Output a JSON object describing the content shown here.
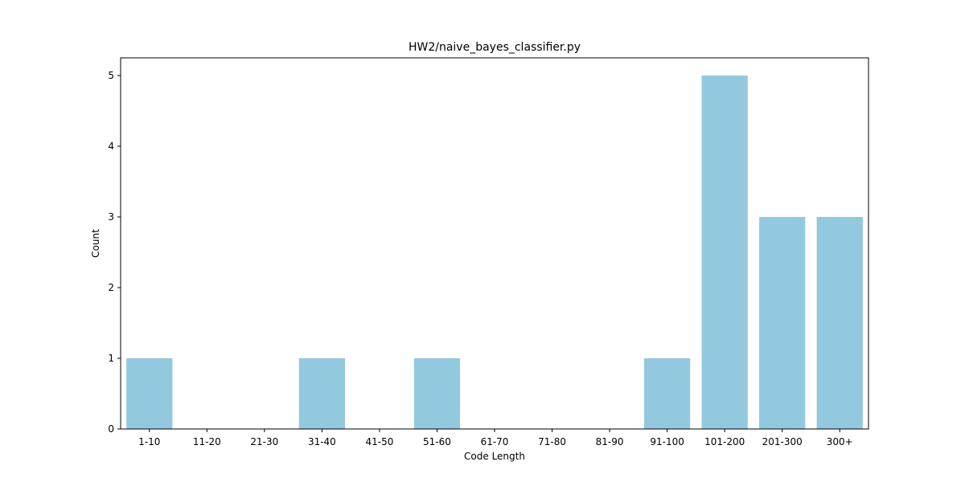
{
  "chart_data": {
    "type": "bar",
    "title": "HW2/naive_bayes_classifier.py",
    "xlabel": "Code Length",
    "ylabel": "Count",
    "categories": [
      "1-10",
      "11-20",
      "21-30",
      "31-40",
      "41-50",
      "51-60",
      "61-70",
      "71-80",
      "81-90",
      "91-100",
      "101-200",
      "201-300",
      "300+"
    ],
    "values": [
      1,
      0,
      0,
      1,
      0,
      1,
      0,
      0,
      0,
      1,
      5,
      3,
      3
    ],
    "ylim": [
      0,
      5.25
    ],
    "yticks": [
      0,
      1,
      2,
      3,
      4,
      5
    ],
    "grid": false,
    "bar_color": "#92c9de"
  }
}
